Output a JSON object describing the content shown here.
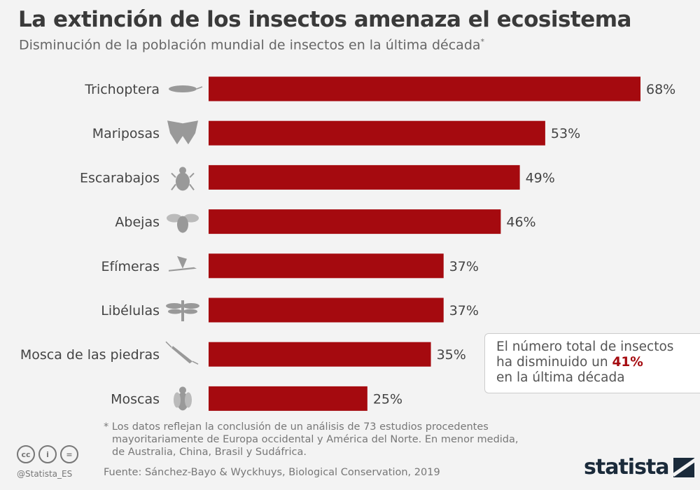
{
  "title": "La extinción de los insectos amenaza el ecosistema",
  "subtitle": "Disminución de la población mundial de insectos en la última década",
  "subtitle_mark": "*",
  "chart_data": {
    "type": "bar",
    "orientation": "horizontal",
    "categories": [
      "Trichoptera",
      "Mariposas",
      "Escarabajos",
      "Abejas",
      "Efímeras",
      "Libélulas",
      "Mosca de las piedras",
      "Moscas"
    ],
    "values": [
      68,
      53,
      49,
      46,
      37,
      37,
      35,
      25
    ],
    "value_labels": [
      "68%",
      "53%",
      "49%",
      "46%",
      "37%",
      "37%",
      "35%",
      "25%"
    ],
    "unit": "%",
    "icons": [
      "caddisfly-icon",
      "butterfly-icon",
      "beetle-icon",
      "bee-icon",
      "mayfly-icon",
      "dragonfly-icon",
      "stonefly-icon",
      "fly-icon"
    ],
    "bar_color": "#a50a0f",
    "grid": false
  },
  "callout": {
    "line1": "El número total de insectos",
    "line2_prefix": "ha disminuido un ",
    "highlight": "41%",
    "line3": "en la última década",
    "highlight_color": "#a50a0f"
  },
  "footnote": {
    "line1": "* Los datos reflejan la conclusión de un análisis de 73 estudios procedentes",
    "line2": "mayoritariamente de Europa occidental y América del Norte. En menor medida,",
    "line3": "de Australia, China, Brasil y Sudáfrica."
  },
  "source": "Fuente: Sánchez-Bayo & Wyckhuys, Biological Conservation, 2019",
  "license": {
    "cc": "cc",
    "by": "i",
    "nd": "="
  },
  "handle": "@Statista_ES",
  "logo": "statista"
}
